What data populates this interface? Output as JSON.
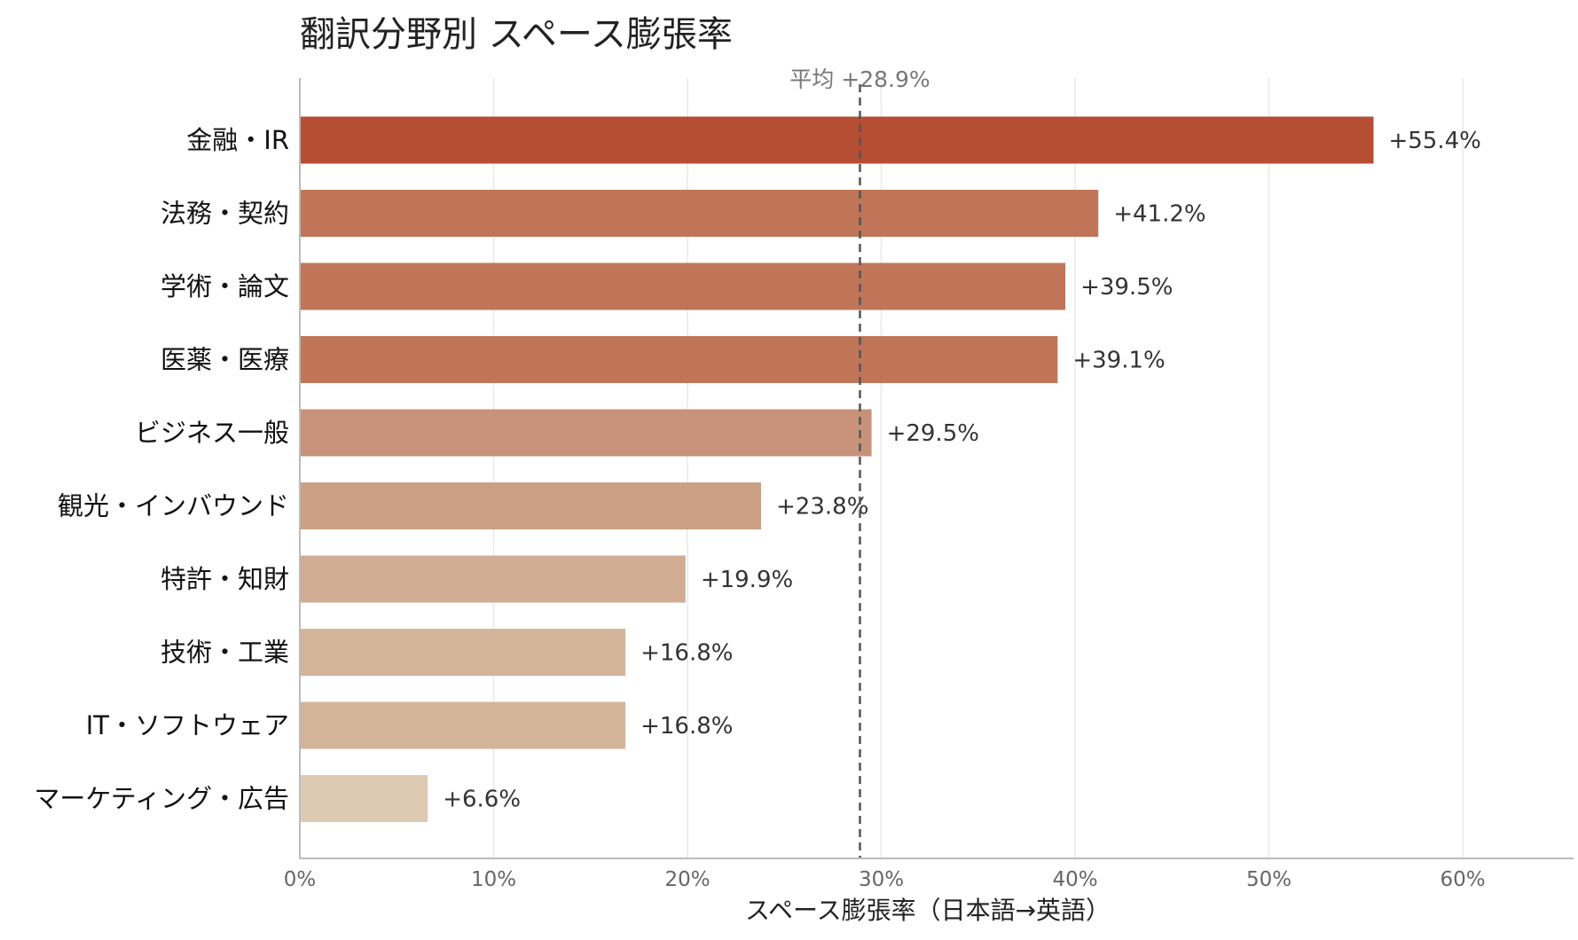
{
  "chart_data": {
    "type": "bar",
    "orientation": "horizontal",
    "title": "翻訳分野別 スペース膨張率",
    "xlabel": "スペース膨張率（日本語→英語）",
    "ylabel": "",
    "xlim": [
      0,
      65
    ],
    "x_ticks": [
      0,
      10,
      20,
      30,
      40,
      50,
      60
    ],
    "x_tick_labels": [
      "0%",
      "10%",
      "20%",
      "30%",
      "40%",
      "50%",
      "60%"
    ],
    "grid": "vertical",
    "legend": "none",
    "categories": [
      "金融・IR",
      "法務・契約",
      "学術・論文",
      "医薬・医療",
      "ビジネス一般",
      "観光・インバウンド",
      "特許・知財",
      "技術・工業",
      "IT・ソフトウェア",
      "マーケティング・広告"
    ],
    "values": [
      55.4,
      41.2,
      39.5,
      39.1,
      29.5,
      23.8,
      19.9,
      16.8,
      16.8,
      6.6
    ],
    "value_labels": [
      "+55.4%",
      "+41.2%",
      "+39.5%",
      "+39.1%",
      "+29.5%",
      "+23.8%",
      "+19.9%",
      "+16.8%",
      "+16.8%",
      "+6.6%"
    ],
    "bar_colors": [
      "#b54e33",
      "#c07559",
      "#c07559",
      "#c07559",
      "#c8927a",
      "#cca085",
      "#d0ac93",
      "#d3b499",
      "#d3b499",
      "#dccbb2"
    ],
    "reference_line": {
      "value": 28.9,
      "label": "平均 +28.9%",
      "style": "dashed",
      "color": "#555555"
    }
  },
  "colors": {
    "gridline": "#e8e8e8",
    "axis": "#bbbbbb",
    "title": "#222222",
    "category_text": "#111111",
    "value_text": "#333333",
    "tick_text": "#666666"
  }
}
